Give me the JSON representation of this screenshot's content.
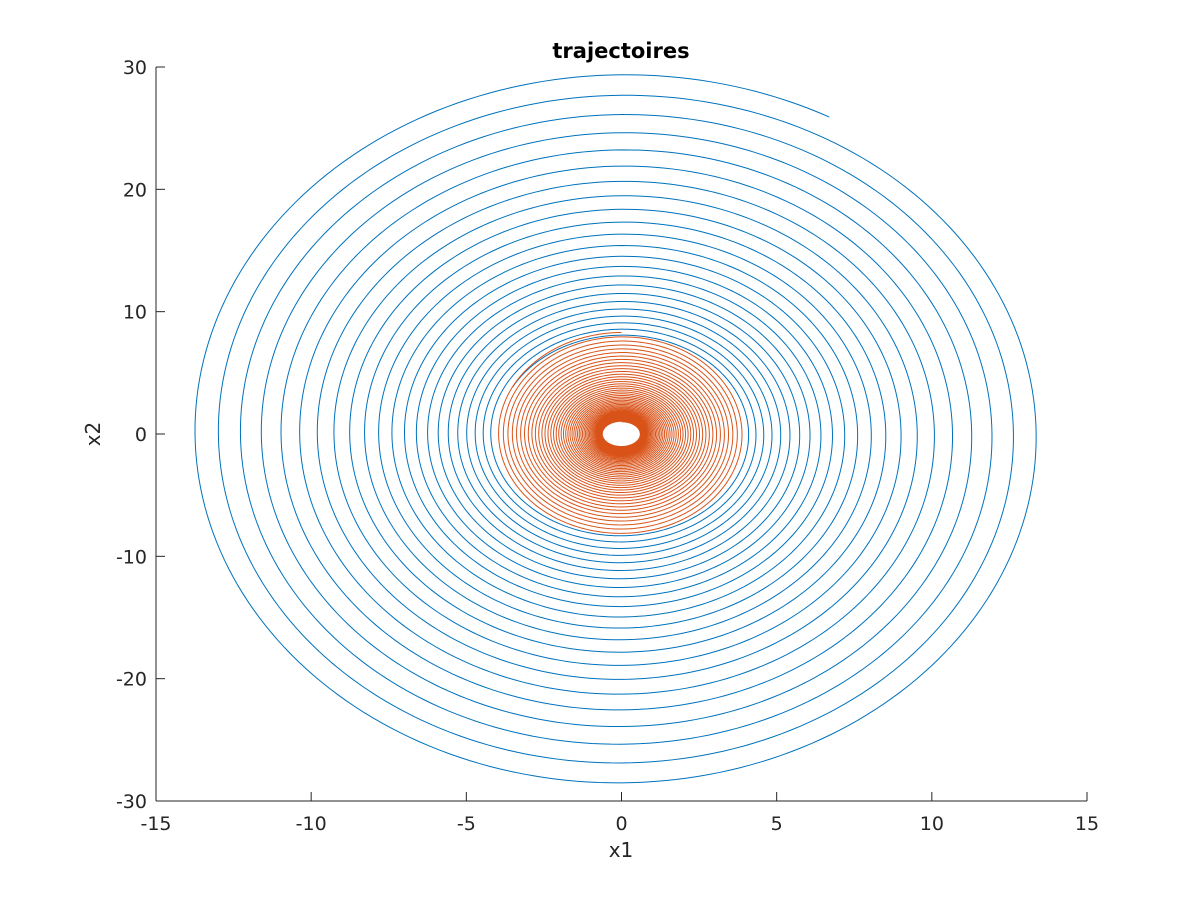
{
  "chart_data": {
    "type": "line",
    "title": "trajectoires",
    "xlabel": "x1",
    "ylabel": "x2",
    "xlim": [
      -15,
      15
    ],
    "ylim": [
      -30,
      30
    ],
    "xticks": [
      -15,
      -10,
      -5,
      0,
      5,
      10,
      15
    ],
    "yticks": [
      -30,
      -20,
      -10,
      0,
      10,
      20,
      30
    ],
    "grid": false,
    "legend": "none",
    "series": [
      {
        "color": "#0072BD",
        "style": "spiral",
        "x_amplitude_start": 14.0,
        "x_amplitude_end": 4.0,
        "y_amplitude_start": 29.5,
        "y_amplitude_end": 8.0,
        "turns": 22.25,
        "start_point": [
          6.8,
          26.3
        ]
      },
      {
        "color": "#D95319",
        "style": "spiral",
        "x_amplitude_start": 4.0,
        "x_amplitude_end": 0.6,
        "y_amplitude_start": 8.3,
        "y_amplitude_end": 1.0,
        "turns": 48,
        "start_point": [
          0.0,
          8.3
        ]
      }
    ]
  }
}
